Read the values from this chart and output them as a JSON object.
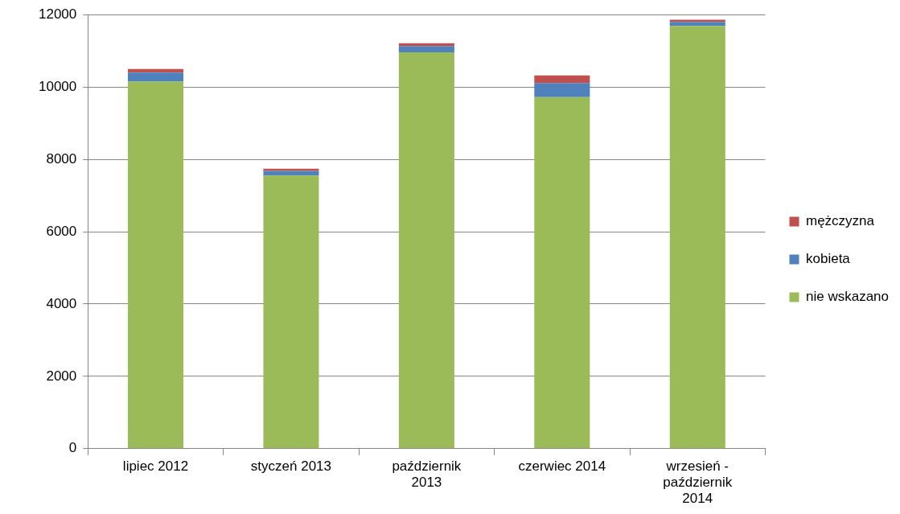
{
  "chart_data": {
    "type": "bar",
    "stacked": true,
    "categories": [
      "lipiec 2012",
      "styczeń 2013",
      "październik 2013",
      "czerwiec 2014",
      "wrzesień - październik 2014"
    ],
    "series": [
      {
        "name": "nie wskazano",
        "color": "#9bbb59",
        "values": [
          10150,
          7550,
          10960,
          9720,
          11690
        ]
      },
      {
        "name": "kobieta",
        "color": "#4f81bd",
        "values": [
          250,
          130,
          170,
          390,
          110
        ]
      },
      {
        "name": "mężczyzna",
        "color": "#c0504d",
        "values": [
          100,
          60,
          80,
          210,
          60
        ]
      }
    ],
    "ylim": [
      0,
      12000
    ],
    "yticks": [
      0,
      2000,
      4000,
      6000,
      8000,
      10000,
      12000
    ],
    "grid": "y",
    "legend": "right"
  }
}
